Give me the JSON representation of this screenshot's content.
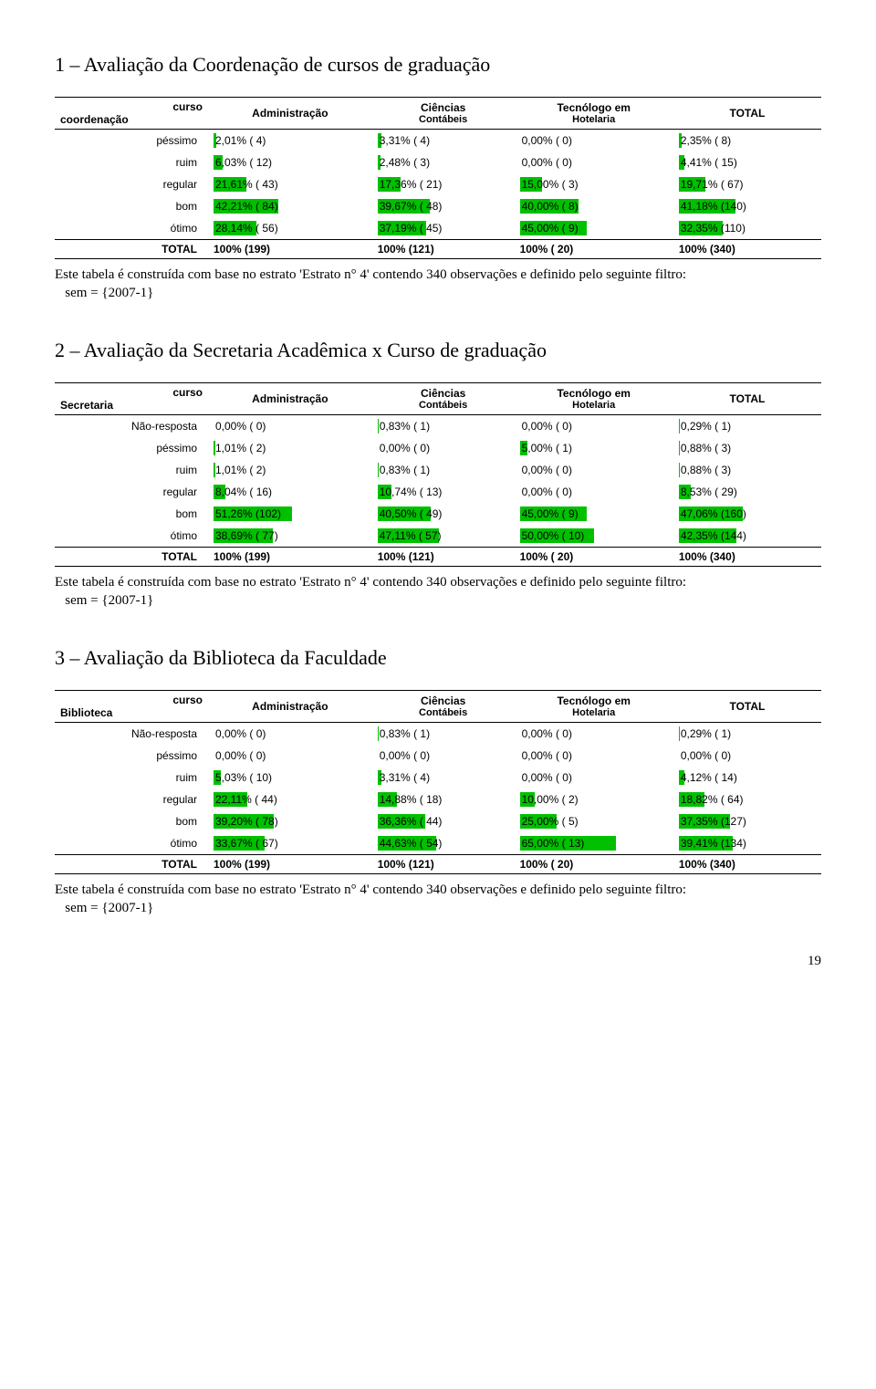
{
  "bar_color": "#00c000",
  "page_number": "19",
  "note_text": "Este tabela é construída com base no estrato 'Estrato n° 4' contendo 340 observações e definido pelo seguinte filtro:",
  "note_sem": "sem = {2007-1}",
  "columns": {
    "curso": "curso",
    "admin": "Administração",
    "cienc": "Ciências",
    "cienc_sub": "Contábeis",
    "tec": "Tecnólogo em",
    "tec_sub": "Hotelaria",
    "total": "TOTAL"
  },
  "sections": [
    {
      "title": "1 – Avaliação da Coordenação de cursos de graduação",
      "row_header": "coordenação",
      "rows": [
        {
          "label": "péssimo",
          "cells": [
            {
              "p": 2.01,
              "t": "2,01% (  4)"
            },
            {
              "p": 3.31,
              "t": "3,31% (  4)"
            },
            {
              "p": 0,
              "t": "0,00% (  0)"
            },
            {
              "p": 2.35,
              "t": "2,35% (  8)"
            }
          ]
        },
        {
          "label": "ruim",
          "cells": [
            {
              "p": 6.03,
              "t": "6,03% ( 12)"
            },
            {
              "p": 2.48,
              "t": "2,48% (  3)"
            },
            {
              "p": 0,
              "t": "0,00% (  0)"
            },
            {
              "p": 4.41,
              "t": "4,41% ( 15)"
            }
          ]
        },
        {
          "label": "regular",
          "cells": [
            {
              "p": 21.61,
              "t": "21,61% ( 43)"
            },
            {
              "p": 17.36,
              "t": "17,36% ( 21)"
            },
            {
              "p": 15,
              "t": "15,00% (  3)"
            },
            {
              "p": 19.71,
              "t": "19,71% ( 67)"
            }
          ]
        },
        {
          "label": "bom",
          "cells": [
            {
              "p": 42.21,
              "t": "42,21% ( 84)"
            },
            {
              "p": 39.67,
              "t": "39,67% ( 48)"
            },
            {
              "p": 40,
              "t": "40,00% (  8)"
            },
            {
              "p": 41.18,
              "t": "41,18% (140)"
            }
          ]
        },
        {
          "label": "ótimo",
          "cells": [
            {
              "p": 28.14,
              "t": "28,14% ( 56)"
            },
            {
              "p": 37.19,
              "t": "37,19% ( 45)"
            },
            {
              "p": 45,
              "t": "45,00% (  9)"
            },
            {
              "p": 32.35,
              "t": "32,35% (110)"
            }
          ]
        }
      ],
      "total_row": {
        "label": "TOTAL",
        "cells": [
          "100% (199)",
          "100% (121)",
          "100% ( 20)",
          "100% (340)"
        ]
      }
    },
    {
      "title": "2 – Avaliação da Secretaria Acadêmica x Curso de graduação",
      "row_header": "Secretaria",
      "rows": [
        {
          "label": "Não-resposta",
          "cells": [
            {
              "p": 0,
              "t": "0,00% (  0)"
            },
            {
              "p": 0.83,
              "t": "0,83% (  1)"
            },
            {
              "p": 0,
              "t": "0,00% (  0)"
            },
            {
              "p": 0.29,
              "t": "0,29% (  1)"
            }
          ]
        },
        {
          "label": "péssimo",
          "cells": [
            {
              "p": 1.01,
              "t": "1,01% (  2)"
            },
            {
              "p": 0,
              "t": "0,00% (  0)"
            },
            {
              "p": 5,
              "t": "5,00% (  1)"
            },
            {
              "p": 0.88,
              "t": "0,88% (  3)"
            }
          ]
        },
        {
          "label": "ruim",
          "cells": [
            {
              "p": 1.01,
              "t": "1,01% (  2)"
            },
            {
              "p": 0.83,
              "t": "0,83% (  1)"
            },
            {
              "p": 0,
              "t": "0,00% (  0)"
            },
            {
              "p": 0.88,
              "t": "0,88% (  3)"
            }
          ]
        },
        {
          "label": "regular",
          "cells": [
            {
              "p": 8.04,
              "t": "8,04% ( 16)"
            },
            {
              "p": 10.74,
              "t": "10,74% ( 13)"
            },
            {
              "p": 0,
              "t": "0,00% (  0)"
            },
            {
              "p": 8.53,
              "t": "8,53% ( 29)"
            }
          ]
        },
        {
          "label": "bom",
          "cells": [
            {
              "p": 51.26,
              "t": "51,26% (102)"
            },
            {
              "p": 40.5,
              "t": "40,50% ( 49)"
            },
            {
              "p": 45,
              "t": "45,00% (  9)"
            },
            {
              "p": 47.06,
              "t": "47,06% (160)"
            }
          ]
        },
        {
          "label": "ótimo",
          "cells": [
            {
              "p": 38.69,
              "t": "38,69% ( 77)"
            },
            {
              "p": 47.11,
              "t": "47,11% ( 57)"
            },
            {
              "p": 50,
              "t": "50,00% ( 10)"
            },
            {
              "p": 42.35,
              "t": "42,35% (144)"
            }
          ]
        }
      ],
      "total_row": {
        "label": "TOTAL",
        "cells": [
          "100% (199)",
          "100% (121)",
          "100% ( 20)",
          "100% (340)"
        ]
      }
    },
    {
      "title": "3 – Avaliação da Biblioteca da Faculdade",
      "row_header": "Biblioteca",
      "rows": [
        {
          "label": "Não-resposta",
          "cells": [
            {
              "p": 0,
              "t": "0,00% (  0)"
            },
            {
              "p": 0.83,
              "t": "0,83% (  1)"
            },
            {
              "p": 0,
              "t": "0,00% (  0)"
            },
            {
              "p": 0.29,
              "t": "0,29% (  1)"
            }
          ]
        },
        {
          "label": "péssimo",
          "cells": [
            {
              "p": 0,
              "t": "0,00% (  0)"
            },
            {
              "p": 0,
              "t": "0,00% (  0)"
            },
            {
              "p": 0,
              "t": "0,00% (  0)"
            },
            {
              "p": 0,
              "t": "0,00% (  0)"
            }
          ]
        },
        {
          "label": "ruim",
          "cells": [
            {
              "p": 5.03,
              "t": "5,03% ( 10)"
            },
            {
              "p": 3.31,
              "t": "3,31% (  4)"
            },
            {
              "p": 0,
              "t": "0,00% (  0)"
            },
            {
              "p": 4.12,
              "t": "4,12% ( 14)"
            }
          ]
        },
        {
          "label": "regular",
          "cells": [
            {
              "p": 22.11,
              "t": "22,11% ( 44)"
            },
            {
              "p": 14.88,
              "t": "14,88% ( 18)"
            },
            {
              "p": 10,
              "t": "10,00% (  2)"
            },
            {
              "p": 18.82,
              "t": "18,82% ( 64)"
            }
          ]
        },
        {
          "label": "bom",
          "cells": [
            {
              "p": 39.2,
              "t": "39,20% ( 78)"
            },
            {
              "p": 36.36,
              "t": "36,36% ( 44)"
            },
            {
              "p": 25,
              "t": "25,00% (  5)"
            },
            {
              "p": 37.35,
              "t": "37,35% (127)"
            }
          ]
        },
        {
          "label": "ótimo",
          "cells": [
            {
              "p": 33.67,
              "t": "33,67% ( 67)"
            },
            {
              "p": 44.63,
              "t": "44,63% ( 54)"
            },
            {
              "p": 65,
              "t": "65,00% ( 13)"
            },
            {
              "p": 39.41,
              "t": "39,41% (134)"
            }
          ]
        }
      ],
      "total_row": {
        "label": "TOTAL",
        "cells": [
          "100% (199)",
          "100% (121)",
          "100% ( 20)",
          "100% (340)"
        ]
      }
    }
  ]
}
